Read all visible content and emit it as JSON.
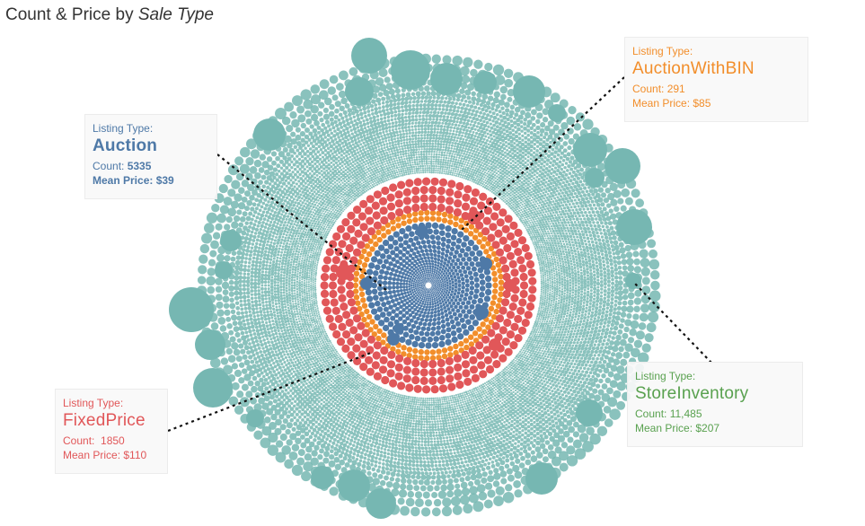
{
  "title": {
    "prefix": "Count & Price by ",
    "emphasis": "Sale Type"
  },
  "colors": {
    "Auction": "#4e79a7",
    "AuctionWithBIN": "#f28e2b",
    "FixedPrice": "#e15759",
    "StoreInventory": "#76b7b2"
  },
  "chart_data": {
    "type": "scatter",
    "title": "Count & Price by Sale Type",
    "encoding": "packed circles; one circle per listing, circle size by price, color by listing type",
    "series": [
      {
        "name": "Auction",
        "count": 5335,
        "mean_price": 39
      },
      {
        "name": "AuctionWithBIN",
        "count": 291,
        "mean_price": 85
      },
      {
        "name": "FixedPrice",
        "count": 1850,
        "mean_price": 110
      },
      {
        "name": "StoreInventory",
        "count": 11485,
        "mean_price": 207
      }
    ]
  },
  "annotations": [
    {
      "key": "auction",
      "label": "Listing Type:",
      "type": "Auction",
      "count_label": "Count:",
      "count": "5335",
      "price_label": "Mean Price:",
      "price": "$39"
    },
    {
      "key": "bin",
      "label": "Listing Type:",
      "type": "AuctionWithBIN",
      "count_label": "Count:",
      "count": "291",
      "price_label": "Mean Price:",
      "price": "$85"
    },
    {
      "key": "fixed",
      "label": "Listing Type:",
      "type": "FixedPrice",
      "count_label": "Count:",
      "count": "1850",
      "price_label": "Mean Price:",
      "price": "$110"
    },
    {
      "key": "store",
      "label": "Listing Type:",
      "type": "StoreInventory",
      "count_label": "Count:",
      "count": "11,485",
      "price_label": "Mean Price:",
      "price": "$207"
    }
  ]
}
